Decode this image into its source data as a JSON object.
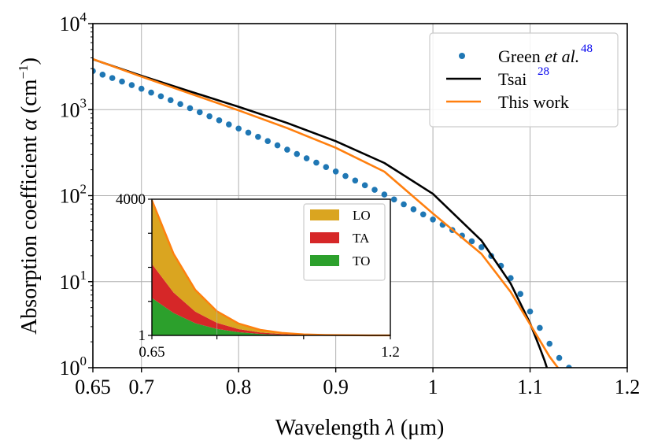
{
  "chart_data": [
    {
      "type": "line",
      "role": "main",
      "xlabel_text": "Wavelength ",
      "xlabel_symbol": "λ",
      "xlabel_unit": " (μm)",
      "ylabel_text": "Absorption coefficient ",
      "ylabel_symbol": "α",
      "ylabel_unit": " (cm",
      "ylabel_unit_exp": "−1",
      "ylabel_unit_close": ")",
      "xscale": "linear",
      "yscale": "log",
      "xlim": [
        0.65,
        1.2
      ],
      "ylim": [
        1,
        10000
      ],
      "grid": true,
      "legend_location": "upper right",
      "x_ticks": [
        {
          "value": 0.65,
          "label": "0.65"
        },
        {
          "value": 0.7,
          "label": "0.7"
        },
        {
          "value": 0.8,
          "label": "0.8"
        },
        {
          "value": 0.9,
          "label": "0.9"
        },
        {
          "value": 1.0,
          "label": "1"
        },
        {
          "value": 1.1,
          "label": "1.1"
        },
        {
          "value": 1.2,
          "label": "1.2"
        }
      ],
      "y_ticks": [
        {
          "value": 1,
          "base": "10",
          "exp": "0"
        },
        {
          "value": 10,
          "base": "10",
          "exp": "1"
        },
        {
          "value": 100,
          "base": "10",
          "exp": "2"
        },
        {
          "value": 1000,
          "base": "10",
          "exp": "3"
        },
        {
          "value": 10000,
          "base": "10",
          "exp": "4"
        }
      ],
      "series": [
        {
          "name": "Green et al.",
          "legend_main": "Green ",
          "legend_italic": "et al.",
          "ref": "48",
          "style": "dots",
          "color": "#1f77b4",
          "x": [
            0.65,
            0.66,
            0.67,
            0.68,
            0.69,
            0.7,
            0.71,
            0.72,
            0.73,
            0.74,
            0.75,
            0.76,
            0.77,
            0.78,
            0.79,
            0.8,
            0.81,
            0.82,
            0.83,
            0.84,
            0.85,
            0.86,
            0.87,
            0.88,
            0.89,
            0.9,
            0.91,
            0.92,
            0.93,
            0.94,
            0.95,
            0.96,
            0.97,
            0.98,
            0.99,
            1.0,
            1.01,
            1.02,
            1.03,
            1.04,
            1.05,
            1.06,
            1.07,
            1.08,
            1.09,
            1.1,
            1.11,
            1.12,
            1.13,
            1.14
          ],
          "y": [
            2810,
            2551,
            2330,
            2120,
            1930,
            1750,
            1580,
            1430,
            1290,
            1160,
            1040,
            934,
            838,
            751,
            673,
            603,
            540,
            483,
            431,
            385,
            343,
            305,
            272,
            242,
            215,
            191,
            169,
            150,
            132,
            117,
            103,
            90.4,
            79.3,
            69.4,
            60.6,
            52.8,
            45.9,
            39.8,
            34.3,
            29.5,
            25.2,
            19.9,
            15.3,
            11.0,
            7.2,
            4.5,
            2.9,
            1.9,
            1.3,
            1.0
          ]
        },
        {
          "name": "Tsai",
          "ref": "28",
          "style": "line",
          "color": "#000000",
          "x": [
            0.65,
            0.7,
            0.75,
            0.8,
            0.85,
            0.9,
            0.95,
            1.0,
            1.05,
            1.08,
            1.1,
            1.11,
            1.115,
            1.12
          ],
          "y": [
            3850,
            2480,
            1630,
            1080,
            700,
            430,
            240,
            105,
            30,
            9.5,
            3.3,
            1.7,
            1.2,
            0.8
          ]
        },
        {
          "name": "This work",
          "style": "line",
          "color": "#ff7f0e",
          "x": [
            0.65,
            0.7,
            0.75,
            0.8,
            0.85,
            0.9,
            0.95,
            1.0,
            1.05,
            1.08,
            1.1,
            1.12,
            1.13,
            1.14
          ],
          "y": [
            3870,
            2420,
            1540,
            980,
            610,
            360,
            190,
            62,
            21,
            7.6,
            3.2,
            1.35,
            0.95,
            0.7
          ]
        }
      ]
    },
    {
      "type": "area",
      "role": "inset",
      "stacked": true,
      "yscale": "linear",
      "xlim": [
        0.65,
        1.2
      ],
      "ylim": [
        1,
        4000
      ],
      "x_tick_labels": [
        {
          "value": 0.65,
          "label": "0.65"
        },
        {
          "value": 1.2,
          "label": "1.2"
        }
      ],
      "y_tick_labels": [
        {
          "value": 1,
          "label": "1"
        },
        {
          "value": 4000,
          "label": "4000"
        }
      ],
      "legend_location": "upper right",
      "x": [
        0.65,
        0.7,
        0.75,
        0.8,
        0.85,
        0.9,
        0.95,
        1.0,
        1.05,
        1.1,
        1.15,
        1.2
      ],
      "series": [
        {
          "name": "TO",
          "color": "#2ca02c",
          "values": [
            1100,
            660,
            360,
            190,
            95,
            45,
            20,
            8,
            4,
            2,
            1,
            1
          ]
        },
        {
          "name": "TA",
          "color": "#d62728",
          "values": [
            1000,
            600,
            340,
            180,
            90,
            42,
            20,
            8,
            4,
            2,
            1,
            1
          ]
        },
        {
          "name": "LO",
          "color": "#daa520",
          "values": [
            1870,
            1140,
            640,
            340,
            165,
            78,
            35,
            14,
            6,
            3,
            1,
            1
          ]
        }
      ],
      "outline_color": "#ff7f0e"
    }
  ]
}
